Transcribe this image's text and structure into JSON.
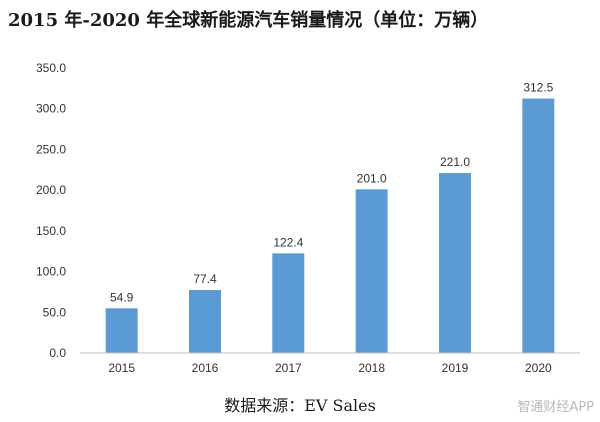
{
  "title": "2015 年-2020 年全球新能源汽车销量情况（单位：万辆）",
  "source": "数据来源：EV Sales",
  "watermark": "智通财经APP",
  "colors": {
    "bar": "#5B9BD5",
    "axis": "#bfbfbf"
  },
  "chart_data": {
    "type": "bar",
    "categories": [
      "2015",
      "2016",
      "2017",
      "2018",
      "2019",
      "2020"
    ],
    "values": [
      54.9,
      77.4,
      122.4,
      201.0,
      221.0,
      312.5
    ],
    "data_labels": [
      "54.9",
      "77.4",
      "122.4",
      "201.0",
      "221.0",
      "312.5"
    ],
    "title": "2015 年-2020 年全球新能源汽车销量情况（单位：万辆）",
    "xlabel": "",
    "ylabel": "",
    "ylim": [
      0,
      350
    ],
    "yticks": [
      0,
      50,
      100,
      150,
      200,
      250,
      300,
      350
    ],
    "ytick_labels": [
      "0.0",
      "50.0",
      "100.0",
      "150.0",
      "200.0",
      "250.0",
      "300.0",
      "350.0"
    ],
    "grid": false,
    "legend": "none"
  }
}
